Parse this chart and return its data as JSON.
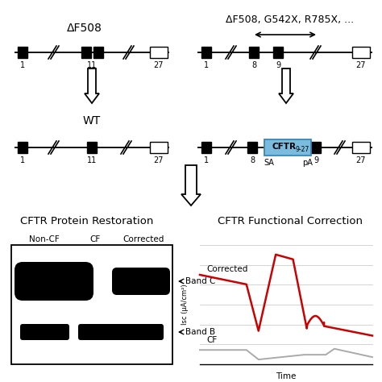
{
  "bg_color": "#ffffff",
  "cftr_box_color": "#7bbcde",
  "cftr_box_edgecolor": "#3a86b8",
  "corrected_line_color": "#cc0000",
  "cf_line_color": "#aaaaaa",
  "delta_f508_label": "ΔF508",
  "top_right_label": "ΔF508, G542X, R785X, ...",
  "wt_label": "WT",
  "protein_title": "CFTR Protein Restoration",
  "functional_title": "CFTR Functional Correction",
  "corrected_trace_label": "Corrected",
  "cf_trace_label": "CF",
  "band_c_label": "Band C",
  "band_b_label": "Band B",
  "non_cf_label": "Non-CF",
  "cf_lane_label": "CF",
  "corrected_lane_label": "Corrected",
  "sa_label": "SA",
  "pa_label": "pA",
  "time_label": "Time",
  "isc_label": "Isc (μA/cm²)"
}
